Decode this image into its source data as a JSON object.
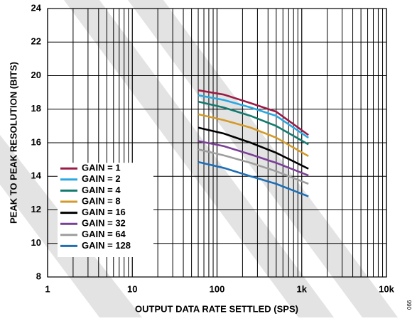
{
  "chart_data": {
    "type": "line",
    "xlabel": "OUTPUT DATA RATE SETTLED (SPS)",
    "ylabel": "PEAK TO PEAK RESOLUTION (BITS)",
    "figure_id": "066",
    "x": [
      60,
      120,
      250,
      500,
      1200
    ],
    "log_x": true,
    "xlim": [
      1,
      10000
    ],
    "xticks": [
      1,
      10,
      100,
      {
        "value": 1000,
        "label": "1k"
      },
      {
        "value": 10000,
        "label": "10k"
      }
    ],
    "xminor": [
      2,
      3,
      4,
      5,
      6,
      7,
      8,
      9,
      20,
      30,
      40,
      50,
      60,
      70,
      80,
      90,
      200,
      300,
      400,
      500,
      600,
      700,
      800,
      900,
      2000,
      3000,
      4000,
      5000,
      6000,
      7000,
      8000,
      9000
    ],
    "ylim": [
      8,
      24
    ],
    "yticks": [
      8,
      10,
      12,
      14,
      16,
      18,
      20,
      22,
      24
    ],
    "grid": true,
    "legend": "lower-left",
    "series": [
      {
        "name": "GAIN = 1",
        "color": "#9b1b46",
        "values": [
          19.13,
          18.87,
          18.36,
          17.85,
          16.46
        ]
      },
      {
        "name": "GAIN = 2",
        "color": "#29a8e0",
        "values": [
          18.83,
          18.55,
          18.1,
          17.6,
          16.3
        ]
      },
      {
        "name": "GAIN = 4",
        "color": "#137a6f",
        "values": [
          18.45,
          18.1,
          17.6,
          17.0,
          15.9
        ]
      },
      {
        "name": "GAIN = 8",
        "color": "#d49a2a",
        "values": [
          17.7,
          17.35,
          16.9,
          16.3,
          15.2
        ]
      },
      {
        "name": "GAIN = 16",
        "color": "#000000",
        "values": [
          16.9,
          16.55,
          16.0,
          15.4,
          14.45
        ]
      },
      {
        "name": "GAIN = 32",
        "color": "#7b3f98",
        "values": [
          16.1,
          15.8,
          15.3,
          14.8,
          14.05
        ]
      },
      {
        "name": "GAIN = 64",
        "color": "#9e9e9e",
        "values": [
          15.6,
          15.25,
          14.8,
          14.3,
          13.55
        ]
      },
      {
        "name": "GAIN = 128",
        "color": "#1f6fb5",
        "values": [
          14.85,
          14.5,
          14.0,
          13.55,
          12.8
        ]
      }
    ]
  }
}
